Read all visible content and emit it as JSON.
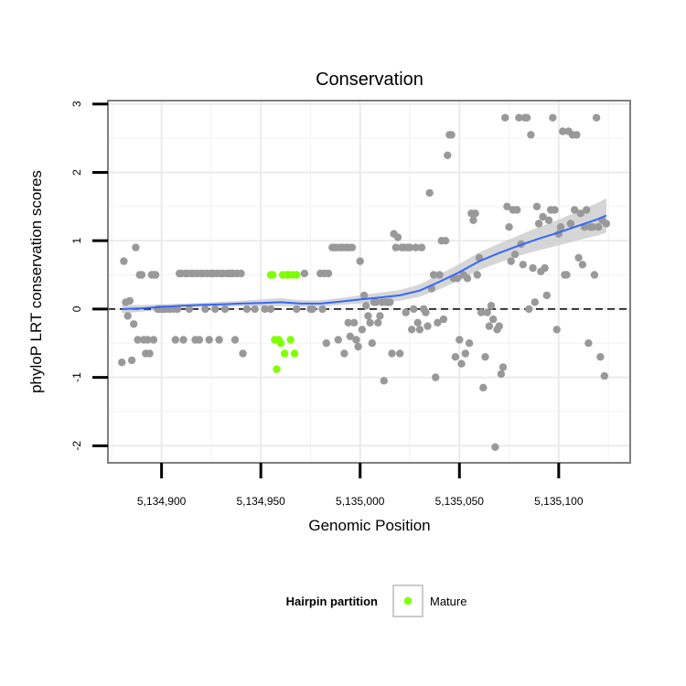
{
  "chart_data": {
    "type": "scatter",
    "title": "Conservation",
    "xlabel": "Genomic Position",
    "ylabel": "phyloP LRT conservation scores",
    "xlim": [
      5134873,
      5135136
    ],
    "ylim": [
      -2.25,
      3.05
    ],
    "x_ticks": [
      5134900,
      5134950,
      5135000,
      5135050,
      5135100
    ],
    "x_tick_labels": [
      "5,134,900",
      "5,134,950",
      "5,135,000",
      "5,135,050",
      "5,135,100"
    ],
    "y_ticks": [
      -2,
      -1,
      0,
      1,
      2,
      3
    ],
    "y_tick_labels": [
      "-2",
      "-1",
      "0",
      "1",
      "2",
      "3"
    ],
    "grid": true,
    "reference_line": {
      "y": 0,
      "style": "dashed"
    },
    "legend": {
      "title": "Hairpin partition",
      "position": "bottom",
      "entries": [
        {
          "label": "Mature",
          "color": "#7fff00"
        }
      ]
    },
    "colors": {
      "other_points": "#999999",
      "mature_points": "#7fff00",
      "smooth_line": "#3366ff",
      "smooth_band": "#c8c8c8"
    },
    "series": [
      {
        "name": "",
        "color": "#999999",
        "points": [
          [
            5134880,
            -0.78
          ],
          [
            5134881,
            0.7
          ],
          [
            5134882,
            0.1
          ],
          [
            5134883,
            -0.1
          ],
          [
            5134884,
            0.12
          ],
          [
            5134885,
            -0.75
          ],
          [
            5134886,
            -0.22
          ],
          [
            5134887,
            0.9
          ],
          [
            5134888,
            -0.45
          ],
          [
            5134889,
            0.5
          ],
          [
            5134890,
            0.5
          ],
          [
            5134891,
            -0.45
          ],
          [
            5134892,
            -0.65
          ],
          [
            5134893,
            -0.45
          ],
          [
            5134894,
            -0.65
          ],
          [
            5134895,
            0.5
          ],
          [
            5134896,
            0.5
          ],
          [
            5134896,
            -0.45
          ],
          [
            5134897,
            0.5
          ],
          [
            5134898,
            0.0
          ],
          [
            5134899,
            0.0
          ],
          [
            5134900,
            0.0
          ],
          [
            5134901,
            0.0
          ],
          [
            5134902,
            0.0
          ],
          [
            5134904,
            0.0
          ],
          [
            5134906,
            0.0
          ],
          [
            5134907,
            -0.45
          ],
          [
            5134908,
            0.0
          ],
          [
            5134909,
            0.52
          ],
          [
            5134910,
            0.52
          ],
          [
            5134911,
            -0.45
          ],
          [
            5134912,
            0.52
          ],
          [
            5134913,
            0.52
          ],
          [
            5134914,
            0.0
          ],
          [
            5134915,
            0.52
          ],
          [
            5134916,
            0.52
          ],
          [
            5134917,
            -0.45
          ],
          [
            5134918,
            0.52
          ],
          [
            5134919,
            -0.45
          ],
          [
            5134920,
            0.52
          ],
          [
            5134921,
            0.52
          ],
          [
            5134922,
            0.0
          ],
          [
            5134923,
            0.52
          ],
          [
            5134924,
            -0.45
          ],
          [
            5134925,
            0.52
          ],
          [
            5134926,
            0.52
          ],
          [
            5134927,
            0.0
          ],
          [
            5134928,
            0.52
          ],
          [
            5134929,
            -0.45
          ],
          [
            5134930,
            0.52
          ],
          [
            5134931,
            0.52
          ],
          [
            5134932,
            0.0
          ],
          [
            5134933,
            0.52
          ],
          [
            5134934,
            0.52
          ],
          [
            5134935,
            0.52
          ],
          [
            5134936,
            0.52
          ],
          [
            5134937,
            -0.45
          ],
          [
            5134938,
            0.52
          ],
          [
            5134940,
            0.52
          ],
          [
            5134941,
            -0.65
          ],
          [
            5134943,
            0.0
          ],
          [
            5134947,
            0.0
          ],
          [
            5134952,
            0.0
          ],
          [
            5134955,
            0.0
          ],
          [
            5134968,
            0.0
          ],
          [
            5134972,
            0.52
          ],
          [
            5134975,
            0.0
          ],
          [
            5134976,
            0.0
          ],
          [
            5134980,
            0.52
          ],
          [
            5134981,
            0.0
          ],
          [
            5134982,
            0.52
          ],
          [
            5134983,
            -0.5
          ],
          [
            5134984,
            0.52
          ],
          [
            5134986,
            0.9
          ],
          [
            5134987,
            0.9
          ],
          [
            5134988,
            0.9
          ],
          [
            5134989,
            -0.45
          ],
          [
            5134990,
            0.9
          ],
          [
            5134991,
            0.9
          ],
          [
            5134992,
            -0.65
          ],
          [
            5134993,
            0.9
          ],
          [
            5134994,
            -0.2
          ],
          [
            5134994,
            0.9
          ],
          [
            5134995,
            -0.4
          ],
          [
            5134996,
            0.9
          ],
          [
            5134997,
            -0.2
          ],
          [
            5134998,
            -0.45
          ],
          [
            5134999,
            -0.55
          ],
          [
            5135000,
            0.7
          ],
          [
            5135001,
            -0.3
          ],
          [
            5135002,
            0.2
          ],
          [
            5135003,
            0.05
          ],
          [
            5135004,
            -0.1
          ],
          [
            5135005,
            -0.2
          ],
          [
            5135006,
            -0.5
          ],
          [
            5135007,
            0.1
          ],
          [
            5135008,
            0.1
          ],
          [
            5135009,
            -0.2
          ],
          [
            5135010,
            -0.1
          ],
          [
            5135011,
            0.1
          ],
          [
            5135012,
            -1.05
          ],
          [
            5135013,
            0.1
          ],
          [
            5135014,
            0.1
          ],
          [
            5135015,
            0.1
          ],
          [
            5135016,
            -0.65
          ],
          [
            5135017,
            1.1
          ],
          [
            5135018,
            0.9
          ],
          [
            5135019,
            1.05
          ],
          [
            5135020,
            -0.65
          ],
          [
            5135021,
            0.9
          ],
          [
            5135022,
            0.9
          ],
          [
            5135023,
            -0.05
          ],
          [
            5135024,
            0.9
          ],
          [
            5135025,
            0.9
          ],
          [
            5135026,
            -0.3
          ],
          [
            5135027,
            0.0
          ],
          [
            5135028,
            0.9
          ],
          [
            5135029,
            -0.2
          ],
          [
            5135030,
            -0.3
          ],
          [
            5135031,
            0.9
          ],
          [
            5135032,
            0.0
          ],
          [
            5135033,
            -0.05
          ],
          [
            5135034,
            -0.25
          ],
          [
            5135035,
            1.7
          ],
          [
            5135036,
            0.3
          ],
          [
            5135037,
            0.5
          ],
          [
            5135038,
            -1.0
          ],
          [
            5135039,
            -0.2
          ],
          [
            5135040,
            0.5
          ],
          [
            5135041,
            1.0
          ],
          [
            5135042,
            -0.15
          ],
          [
            5135043,
            1.0
          ],
          [
            5135044,
            2.25
          ],
          [
            5135045,
            2.55
          ],
          [
            5135046,
            2.55
          ],
          [
            5135047,
            0.45
          ],
          [
            5135048,
            -0.7
          ],
          [
            5135049,
            0.45
          ],
          [
            5135050,
            -0.45
          ],
          [
            5135051,
            -0.8
          ],
          [
            5135052,
            0.5
          ],
          [
            5135053,
            -0.65
          ],
          [
            5135054,
            0.45
          ],
          [
            5135055,
            -0.5
          ],
          [
            5135056,
            1.4
          ],
          [
            5135057,
            1.3
          ],
          [
            5135058,
            1.4
          ],
          [
            5135059,
            0.5
          ],
          [
            5135060,
            0.75
          ],
          [
            5135061,
            -0.05
          ],
          [
            5135062,
            -1.15
          ],
          [
            5135063,
            -0.7
          ],
          [
            5135064,
            -0.05
          ],
          [
            5135065,
            -0.25
          ],
          [
            5135066,
            0.05
          ],
          [
            5135067,
            -0.15
          ],
          [
            5135068,
            -2.02
          ],
          [
            5135069,
            -0.3
          ],
          [
            5135070,
            -0.25
          ],
          [
            5135071,
            -0.95
          ],
          [
            5135072,
            -0.85
          ],
          [
            5135073,
            2.8
          ],
          [
            5135074,
            1.5
          ],
          [
            5135075,
            1.2
          ],
          [
            5135076,
            0.7
          ],
          [
            5135077,
            1.45
          ],
          [
            5135078,
            0.8
          ],
          [
            5135079,
            1.45
          ],
          [
            5135080,
            2.8
          ],
          [
            5135081,
            0.95
          ],
          [
            5135082,
            0.65
          ],
          [
            5135083,
            2.8
          ],
          [
            5135084,
            2.8
          ],
          [
            5135085,
            0.0
          ],
          [
            5135086,
            2.55
          ],
          [
            5135087,
            0.6
          ],
          [
            5135088,
            0.1
          ],
          [
            5135089,
            1.5
          ],
          [
            5135090,
            1.25
          ],
          [
            5135091,
            0.55
          ],
          [
            5135092,
            1.35
          ],
          [
            5135093,
            0.6
          ],
          [
            5135094,
            0.2
          ],
          [
            5135095,
            1.3
          ],
          [
            5135096,
            1.45
          ],
          [
            5135097,
            2.8
          ],
          [
            5135098,
            1.45
          ],
          [
            5135099,
            -0.3
          ],
          [
            5135100,
            1.1
          ],
          [
            5135101,
            1.2
          ],
          [
            5135102,
            2.6
          ],
          [
            5135103,
            0.5
          ],
          [
            5135104,
            0.5
          ],
          [
            5135105,
            2.6
          ],
          [
            5135106,
            1.25
          ],
          [
            5135107,
            2.55
          ],
          [
            5135108,
            1.45
          ],
          [
            5135109,
            2.55
          ],
          [
            5135110,
            0.75
          ],
          [
            5135111,
            1.4
          ],
          [
            5135112,
            0.65
          ],
          [
            5135113,
            1.2
          ],
          [
            5135114,
            1.45
          ],
          [
            5135115,
            -0.5
          ],
          [
            5135116,
            1.2
          ],
          [
            5135117,
            1.2
          ],
          [
            5135118,
            0.5
          ],
          [
            5135119,
            2.8
          ],
          [
            5135120,
            1.2
          ],
          [
            5135121,
            -0.7
          ],
          [
            5135122,
            1.3
          ],
          [
            5135123,
            -0.98
          ],
          [
            5135124,
            1.25
          ]
        ]
      },
      {
        "name": "Mature",
        "color": "#7fff00",
        "points": [
          [
            5134955,
            0.5
          ],
          [
            5134956,
            0.5
          ],
          [
            5134957,
            -0.45
          ],
          [
            5134958,
            -0.88
          ],
          [
            5134959,
            -0.45
          ],
          [
            5134960,
            -0.5
          ],
          [
            5134961,
            0.5
          ],
          [
            5134962,
            -0.65
          ],
          [
            5134963,
            0.5
          ],
          [
            5134964,
            0.5
          ],
          [
            5134965,
            -0.45
          ],
          [
            5134966,
            0.5
          ],
          [
            5134967,
            -0.65
          ],
          [
            5134968,
            0.5
          ]
        ]
      }
    ],
    "smooth": {
      "x": [
        5134880,
        5134890,
        5134900,
        5134910,
        5134920,
        5134930,
        5134940,
        5134950,
        5134960,
        5134970,
        5134980,
        5134990,
        5135000,
        5135010,
        5135020,
        5135030,
        5135040,
        5135050,
        5135060,
        5135070,
        5135080,
        5135090,
        5135100,
        5135110,
        5135120,
        5135124
      ],
      "y": [
        0.0,
        0.01,
        0.03,
        0.05,
        0.06,
        0.07,
        0.08,
        0.09,
        0.1,
        0.08,
        0.08,
        0.11,
        0.14,
        0.17,
        0.2,
        0.27,
        0.4,
        0.54,
        0.7,
        0.82,
        0.93,
        1.03,
        1.12,
        1.22,
        1.32,
        1.37
      ],
      "lower": [
        -0.06,
        -0.04,
        -0.01,
        0.02,
        0.03,
        0.03,
        0.04,
        0.04,
        0.04,
        0.03,
        0.03,
        0.06,
        0.08,
        0.1,
        0.12,
        0.18,
        0.29,
        0.42,
        0.57,
        0.68,
        0.78,
        0.86,
        0.93,
        1.01,
        1.08,
        1.12
      ],
      "upper": [
        0.06,
        0.06,
        0.07,
        0.08,
        0.09,
        0.11,
        0.12,
        0.14,
        0.16,
        0.13,
        0.13,
        0.16,
        0.2,
        0.24,
        0.28,
        0.36,
        0.51,
        0.66,
        0.83,
        0.96,
        1.08,
        1.2,
        1.31,
        1.43,
        1.56,
        1.62
      ]
    }
  }
}
